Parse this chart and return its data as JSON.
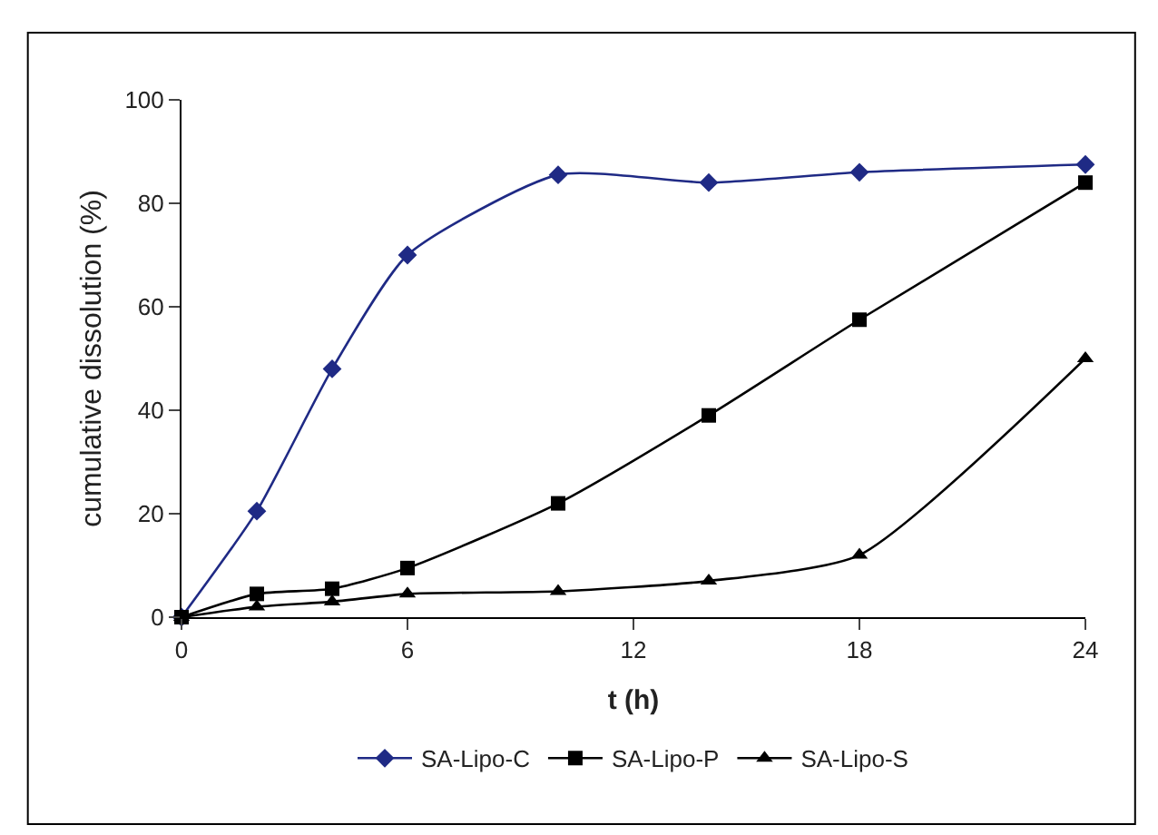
{
  "chart_data": {
    "type": "line",
    "xlabel": "t (h)",
    "ylabel": "cumulative dissolution (%)",
    "x": [
      0,
      2,
      4,
      6,
      10,
      14,
      18,
      24
    ],
    "series": [
      {
        "name": "SA-Lipo-C",
        "color": "#1f2a85",
        "marker": "diamond",
        "values": [
          0,
          20.5,
          48,
          70,
          85.5,
          84,
          86,
          87.5
        ]
      },
      {
        "name": "SA-Lipo-P",
        "color": "#000000",
        "marker": "square",
        "values": [
          0,
          4.5,
          5.5,
          9.5,
          22,
          39,
          57.5,
          84
        ]
      },
      {
        "name": "SA-Lipo-S",
        "color": "#000000",
        "marker": "triangle",
        "values": [
          0,
          2,
          3,
          4.5,
          5,
          7,
          12,
          50
        ]
      }
    ],
    "xlim": [
      0,
      24
    ],
    "xticks": [
      0,
      6,
      12,
      18,
      24
    ],
    "ylim": [
      0,
      100
    ],
    "yticks": [
      0,
      20,
      40,
      60,
      80,
      100
    ],
    "legend": "bottom",
    "line_style": "solid"
  }
}
